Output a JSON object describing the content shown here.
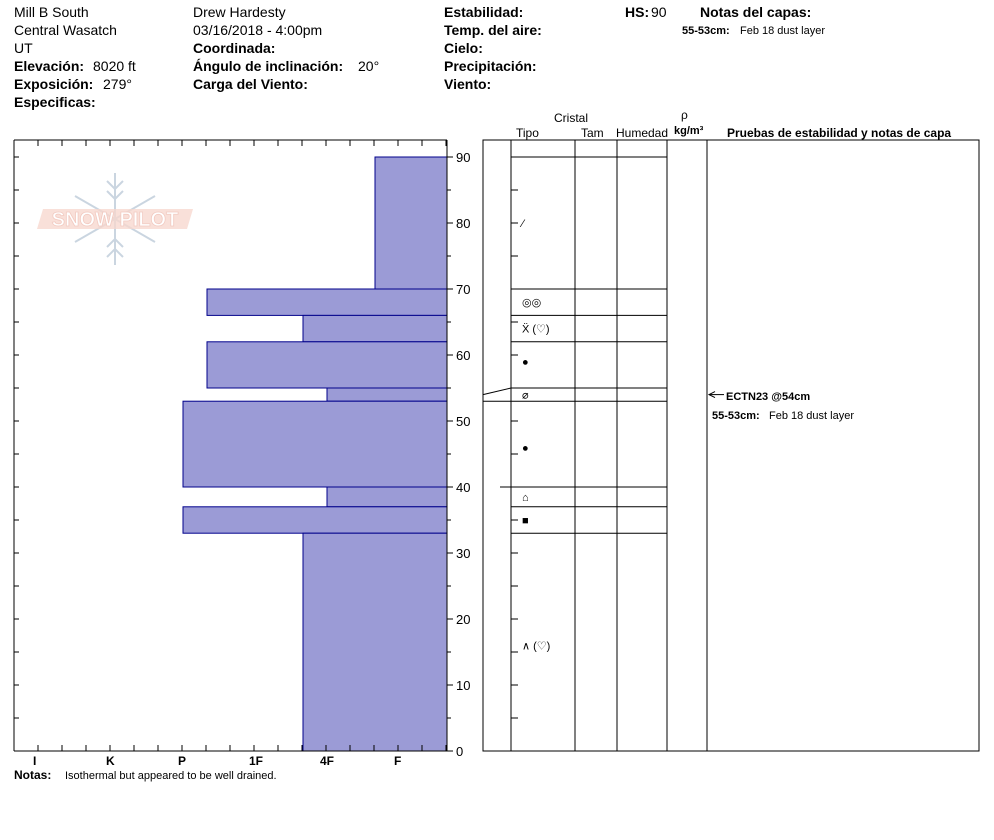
{
  "header": {
    "location": "Mill B South",
    "range": "Central Wasatch",
    "state": "UT",
    "elevation_label": "Elevación:",
    "elevation_value": "8020 ft",
    "aspect_label": "Exposición:",
    "aspect_value": "279°",
    "specifics_label": "Especificas:",
    "observer": "Drew Hardesty",
    "datetime": "03/16/2018 - 4:00pm",
    "coords_label": "Coordinada:",
    "slope_label": "Ángulo de inclinación:",
    "slope_value": "20°",
    "wind_load_label": "Carga del Viento:",
    "stability_label": "Estabilidad:",
    "air_temp_label": "Temp. del aire:",
    "sky_label": "Cielo:",
    "precip_label": "Precipitación:",
    "wind_label": "Viento:",
    "hs_label": "HS:",
    "hs_value": "90",
    "layer_notes_label": "Notas del capas:",
    "layer_note_range": "55-53cm:",
    "layer_note_text": "Feb 18 dust layer"
  },
  "columns": {
    "crystal": "Cristal",
    "type": "Tipo",
    "size": "Tam",
    "moisture": "Humedad",
    "rho": "ρ",
    "density_unit": "kg/m³",
    "stability_tests": "Pruebas de estabilidad y notas de capa"
  },
  "logo_text": "SNOW PILOT",
  "notes_label": "Notas:",
  "notes_text": "Isothermal but appeared to be well drained.",
  "test_result": "ECTN23 @54cm",
  "test_note_range": "55-53cm:",
  "test_note_text": "Feb 18 dust layer",
  "colors": {
    "bar_fill": "#9b9bd6",
    "bar_stroke": "#00008b"
  },
  "chart_data": {
    "type": "bar",
    "orientation": "horizontal",
    "title": "",
    "ylabel": "",
    "ylim": [
      0,
      92
    ],
    "yticks": [
      0,
      10,
      20,
      30,
      40,
      50,
      60,
      70,
      80,
      90
    ],
    "hardness_scale": [
      "I",
      "K",
      "P",
      "1F",
      "4F",
      "F"
    ],
    "layers": [
      {
        "top": 90,
        "bottom": 70,
        "hardness": "F"
      },
      {
        "top": 70,
        "bottom": 66,
        "hardness": "P+"
      },
      {
        "top": 66,
        "bottom": 62,
        "hardness": "1F-"
      },
      {
        "top": 62,
        "bottom": 55,
        "hardness": "P+"
      },
      {
        "top": 55,
        "bottom": 53,
        "hardness": "4F+"
      },
      {
        "top": 53,
        "bottom": 40,
        "hardness": "P"
      },
      {
        "top": 40,
        "bottom": 37,
        "hardness": "4F+"
      },
      {
        "top": 37,
        "bottom": 33,
        "hardness": "P"
      },
      {
        "top": 33,
        "bottom": 0,
        "hardness": "1F-"
      }
    ],
    "layer_boundaries": [
      90,
      70,
      66,
      62,
      55,
      53,
      40,
      37,
      33
    ],
    "crystal_symbols": [
      {
        "depth": 80,
        "symbol": "⁄"
      },
      {
        "depth": 68,
        "symbol": "◎◎"
      },
      {
        "depth": 64,
        "symbol": "Ẍ (♡)"
      },
      {
        "depth": 59,
        "symbol": "●"
      },
      {
        "depth": 54,
        "symbol": "⌀"
      },
      {
        "depth": 46,
        "symbol": "●"
      },
      {
        "depth": 38.5,
        "symbol": "⌂"
      },
      {
        "depth": 35,
        "symbol": "■"
      },
      {
        "depth": 16,
        "symbol": "∧ (♡)"
      }
    ]
  }
}
